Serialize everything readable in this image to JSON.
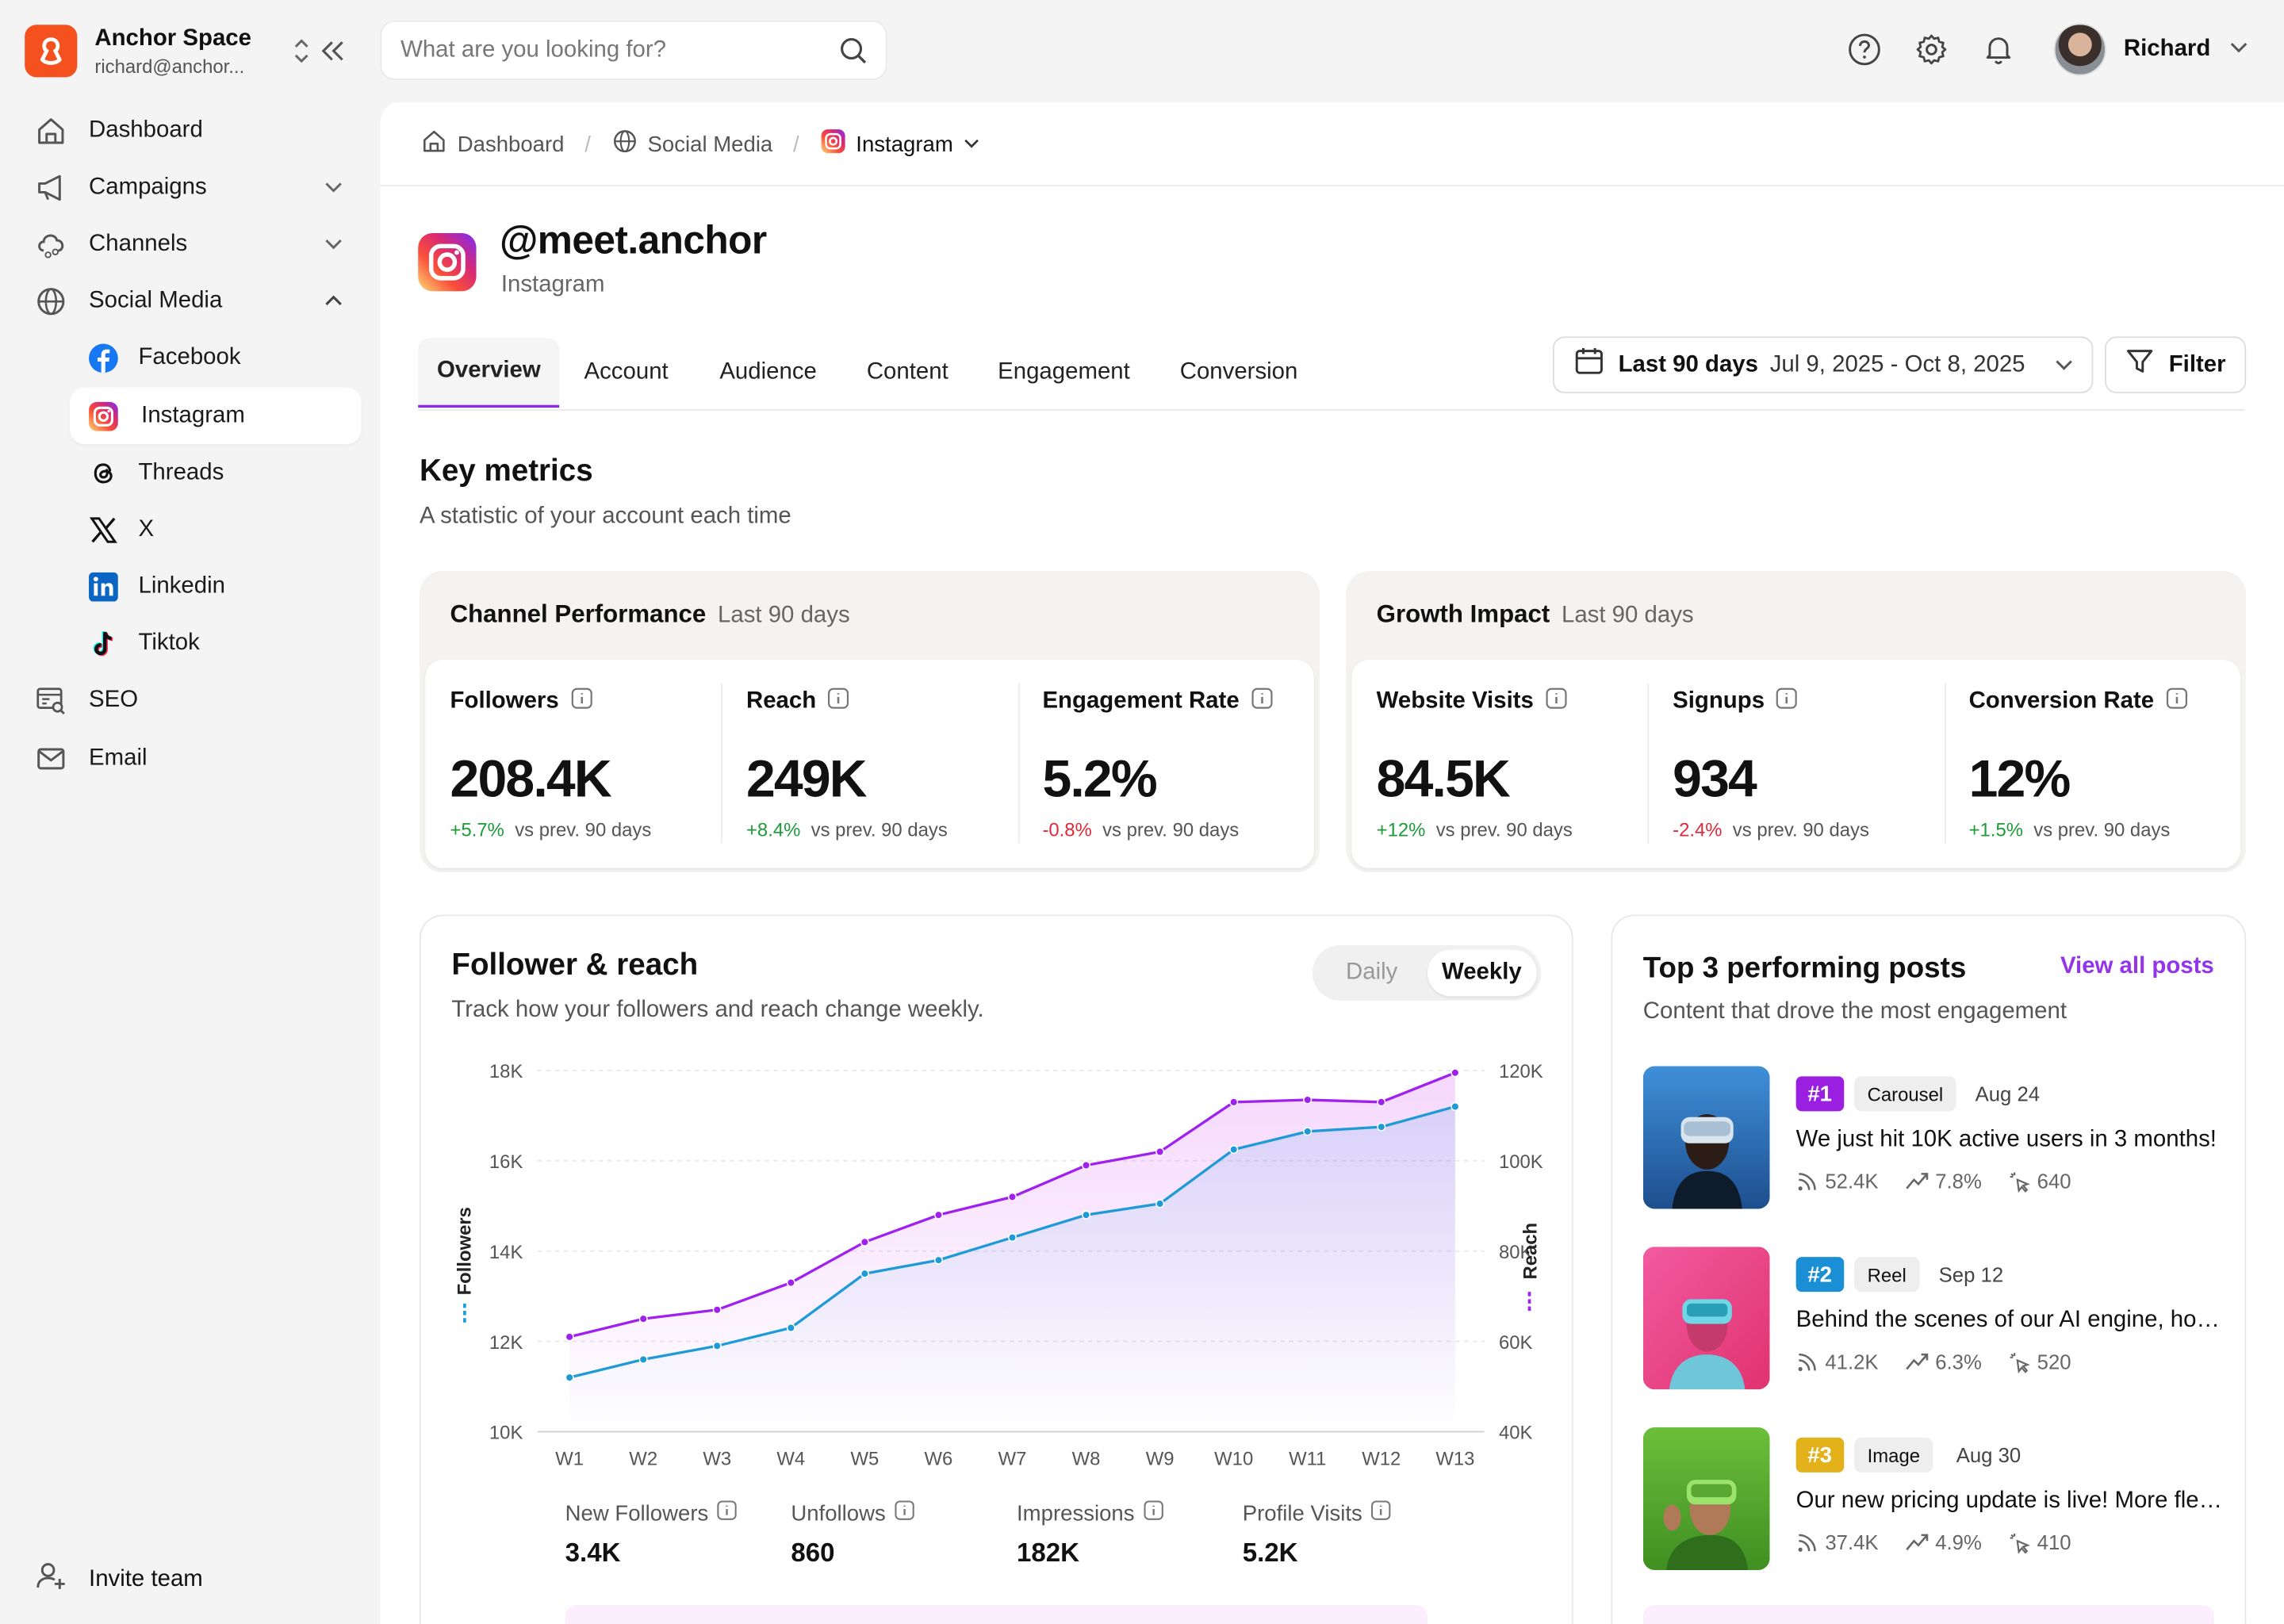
{
  "workspace": {
    "name": "Anchor Space",
    "email": "richard@anchor..."
  },
  "search": {
    "placeholder": "What are you looking for?"
  },
  "user": {
    "name": "Richard"
  },
  "nav": {
    "items": [
      {
        "label": "Dashboard"
      },
      {
        "label": "Campaigns"
      },
      {
        "label": "Channels"
      },
      {
        "label": "Social Media"
      },
      {
        "label": "Facebook"
      },
      {
        "label": "Instagram"
      },
      {
        "label": "Threads"
      },
      {
        "label": "X"
      },
      {
        "label": "Linkedin"
      },
      {
        "label": "Tiktok"
      },
      {
        "label": "SEO"
      },
      {
        "label": "Email"
      }
    ],
    "invite": "Invite team"
  },
  "breadcrumb": {
    "items": [
      "Dashboard",
      "Social Media",
      "Instagram"
    ]
  },
  "profile": {
    "handle": "@meet.anchor",
    "platform": "Instagram"
  },
  "tabs": [
    "Overview",
    "Account",
    "Audience",
    "Content",
    "Engagement",
    "Conversion"
  ],
  "date_range": {
    "label": "Last 90 days",
    "range": "Jul 9, 2025 - Oct 8, 2025"
  },
  "filter_label": "Filter",
  "key_metrics": {
    "title": "Key metrics",
    "subtitle": "A statistic of your account each time",
    "groups": [
      {
        "title": "Channel Performance",
        "period": "Last 90 days",
        "metrics": [
          {
            "label": "Followers",
            "value": "208.4K",
            "delta": "+5.7%",
            "compare": "vs prev. 90 days",
            "dir": "pos"
          },
          {
            "label": "Reach",
            "value": "249K",
            "delta": "+8.4%",
            "compare": "vs prev. 90 days",
            "dir": "pos"
          },
          {
            "label": "Engagement Rate",
            "value": "5.2%",
            "delta": "-0.8%",
            "compare": "vs prev. 90 days",
            "dir": "neg"
          }
        ]
      },
      {
        "title": "Growth Impact",
        "period": "Last 90 days",
        "metrics": [
          {
            "label": "Website Visits",
            "value": "84.5K",
            "delta": "+12%",
            "compare": "vs prev. 90 days",
            "dir": "pos"
          },
          {
            "label": "Signups",
            "value": "934",
            "delta": "-2.4%",
            "compare": "vs prev. 90 days",
            "dir": "neg"
          },
          {
            "label": "Conversion Rate",
            "value": "12%",
            "delta": "+1.5%",
            "compare": "vs prev. 90 days",
            "dir": "pos"
          }
        ]
      }
    ]
  },
  "follower_reach": {
    "title": "Follower & reach",
    "subtitle": "Track how your followers and reach change weekly.",
    "toggle": {
      "options": [
        "Daily",
        "Weekly"
      ],
      "selected": "Weekly"
    },
    "stats": [
      {
        "label": "New Followers",
        "value": "3.4K"
      },
      {
        "label": "Unfollows",
        "value": "860"
      },
      {
        "label": "Impressions",
        "value": "182K"
      },
      {
        "label": "Profile Visits",
        "value": "5.2K"
      }
    ]
  },
  "chart_data": {
    "type": "line",
    "x": [
      "W1",
      "W2",
      "W3",
      "W4",
      "W5",
      "W6",
      "W7",
      "W8",
      "W9",
      "W10",
      "W11",
      "W12",
      "W13"
    ],
    "y_left": {
      "label": "Followers",
      "ticks": [
        "10K",
        "12K",
        "14K",
        "16K",
        "18K"
      ],
      "range": [
        10000,
        18000
      ]
    },
    "y_right": {
      "label": "Reach",
      "ticks": [
        "40K",
        "60K",
        "80K",
        "100K",
        "120K"
      ],
      "range": [
        40000,
        120000
      ]
    },
    "series": [
      {
        "name": "Reach",
        "axis": "right",
        "color": "#a020f0",
        "values": [
          61000,
          65000,
          67000,
          73000,
          82000,
          88000,
          92000,
          99000,
          102000,
          113000,
          113500,
          113000,
          119500
        ]
      },
      {
        "name": "Followers",
        "axis": "left",
        "color": "#1e9bd7",
        "values": [
          11200,
          11600,
          11900,
          12300,
          13500,
          13800,
          14300,
          14800,
          15050,
          16250,
          16650,
          16750,
          17200
        ]
      }
    ],
    "grid": true
  },
  "top_posts": {
    "title": "Top 3 performing posts",
    "subtitle": "Content that drove the most engagement",
    "view_all": "View all posts",
    "posts": [
      {
        "rank": "#1",
        "rank_color": "#9b1fe0",
        "type": "Carousel",
        "date": "Aug 24",
        "text": "We just hit 10K active users in 3 months!",
        "reach": "52.4K",
        "rate": "7.8%",
        "clicks": "640"
      },
      {
        "rank": "#2",
        "rank_color": "#1b8fd6",
        "type": "Reel",
        "date": "Sep 12",
        "text": "Behind the scenes of our AI engine, how it works",
        "reach": "41.2K",
        "rate": "6.3%",
        "clicks": "520"
      },
      {
        "rank": "#3",
        "rank_color": "#e3b21b",
        "type": "Image",
        "date": "Aug 30",
        "text": "Our new pricing update is live! More flexible plans",
        "reach": "37.4K",
        "rate": "4.9%",
        "clicks": "410"
      }
    ]
  }
}
